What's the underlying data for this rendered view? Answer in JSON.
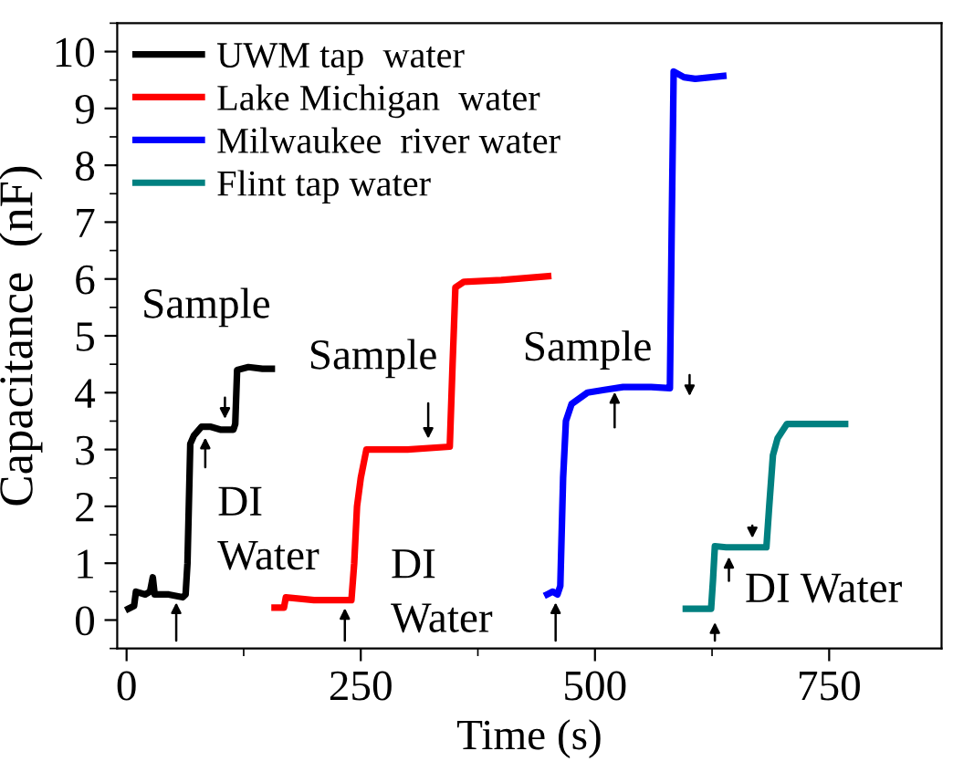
{
  "chart_data": {
    "type": "line",
    "xlabel": "Time (s)",
    "ylabel": "Capacitance  (nF)",
    "xlim": [
      -10,
      870
    ],
    "ylim": [
      -0.5,
      10.5
    ],
    "xticks": [
      0,
      250,
      500,
      750
    ],
    "yticks": [
      0,
      1,
      2,
      3,
      4,
      5,
      6,
      7,
      8,
      9,
      10
    ],
    "grid": false,
    "legend": "top left",
    "marker": "none",
    "line_style": "solid",
    "series": [
      {
        "name": "UWM tap  water",
        "color": "#000000",
        "x": [
          2,
          8,
          10,
          20,
          25,
          28,
          30,
          45,
          60,
          63,
          65,
          68,
          72,
          80,
          90,
          100,
          114,
          116,
          118,
          130,
          145,
          155
        ],
        "values": [
          0.2,
          0.25,
          0.5,
          0.45,
          0.5,
          0.75,
          0.45,
          0.45,
          0.4,
          0.45,
          1.0,
          3.1,
          3.25,
          3.4,
          3.4,
          3.35,
          3.35,
          3.45,
          4.4,
          4.45,
          4.42,
          4.42
        ]
      },
      {
        "name": "Lake Michigan  water",
        "color": "#ff0000",
        "x": [
          158,
          168,
          170,
          200,
          240,
          243,
          246,
          250,
          256,
          300,
          345,
          348,
          351,
          360,
          400,
          450
        ],
        "values": [
          0.22,
          0.22,
          0.4,
          0.35,
          0.35,
          1.0,
          2.0,
          2.5,
          3.0,
          3.0,
          3.05,
          4.5,
          5.85,
          5.95,
          5.98,
          6.05
        ]
      },
      {
        "name": "Milwaukee  river water",
        "color": "#0000ff",
        "x": [
          449,
          455,
          460,
          463,
          466,
          469,
          475,
          492,
          510,
          530,
          560,
          580,
          582,
          584,
          595,
          607,
          637
        ],
        "values": [
          0.45,
          0.5,
          0.45,
          0.6,
          2.5,
          3.5,
          3.8,
          4.0,
          4.05,
          4.1,
          4.1,
          4.08,
          7.0,
          9.65,
          9.55,
          9.52,
          9.57
        ]
      },
      {
        "name": "Flint tap water",
        "color": "#008080",
        "x": [
          597,
          624,
          626,
          628,
          640,
          683,
          686,
          690,
          695,
          705,
          730,
          767
        ],
        "values": [
          0.2,
          0.2,
          0.7,
          1.3,
          1.28,
          1.28,
          2.0,
          2.9,
          3.2,
          3.45,
          3.45,
          3.45
        ]
      }
    ],
    "annotations": [
      "Sample",
      "DI\nWater",
      "Sample",
      "DI\nWater",
      "Sample",
      "DI Water"
    ]
  }
}
